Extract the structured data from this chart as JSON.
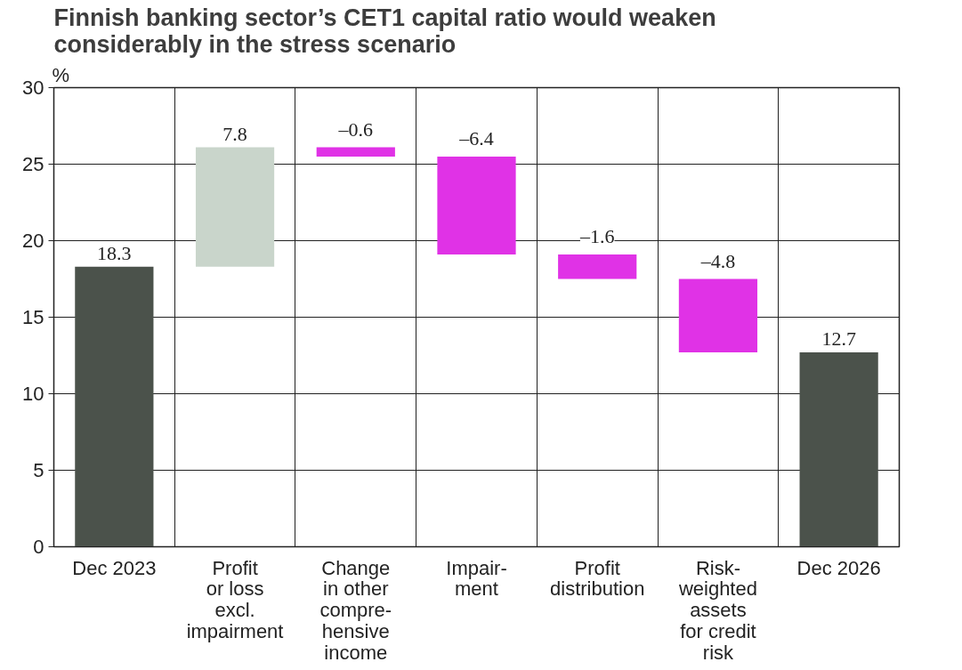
{
  "chart_data": {
    "type": "bar",
    "title": "Finnish banking sector’s CET1 capital ratio would weaken considerably in the stress scenario",
    "ylabel": "%",
    "categories": [
      "Dec 2023",
      "Profit\nor loss\nexcl.\nimpairment",
      "Change\nin other\ncompre-\nhensive\nincome",
      "Impair-\nment",
      "Profit\ndistribution",
      "Risk-\nweighted\nassets\nfor credit\nrisk",
      "Dec 2026"
    ],
    "values": [
      18.3,
      7.8,
      -0.6,
      -6.4,
      -1.6,
      -4.8,
      12.7
    ],
    "base": [
      0,
      18.3,
      26.1,
      25.5,
      19.1,
      17.5,
      0
    ],
    "colors": [
      "#4b524b",
      "#c9d5cb",
      "#e032e6",
      "#e032e6",
      "#e032e6",
      "#e032e6",
      "#4b524b"
    ],
    "value_labels": [
      "18.3",
      "7.8",
      "–0.6",
      "–6.4",
      "–1.6",
      "–4.8",
      "12.7"
    ],
    "ylim": [
      0,
      30
    ],
    "yticks": [
      0,
      5,
      10,
      15,
      20,
      25,
      30
    ],
    "grid": true
  }
}
